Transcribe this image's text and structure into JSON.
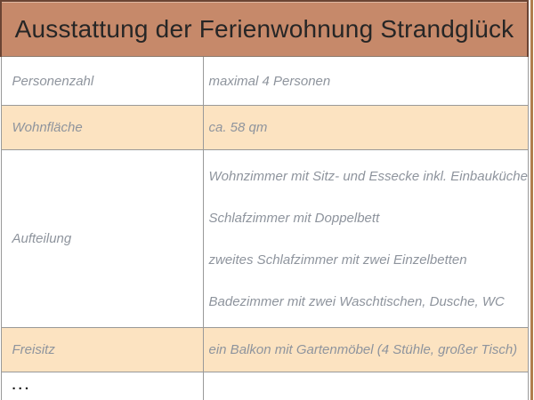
{
  "header": {
    "title": "Ausstattung der Ferienwohnung Strandglück"
  },
  "table": {
    "rows": [
      {
        "label": "Personenzahl",
        "value": "maximal 4 Personen",
        "highlighted": false
      },
      {
        "label": "Wohnfläche",
        "value": "ca. 58 qm",
        "highlighted": true
      },
      {
        "label": "Aufteilung",
        "values": [
          "Wohnzimmer mit Sitz- und Essecke inkl. Einbauküche",
          "Schlafzimmer mit Doppelbett",
          "zweites Schlafzimmer mit zwei Einzelbetten",
          "Badezimmer mit zwei Waschtischen, Dusche, WC"
        ],
        "highlighted": false
      },
      {
        "label": "Freisitz",
        "value": "ein Balkon mit Gartenmöbel (4 Stühle, großer Tisch)",
        "highlighted": true
      },
      {
        "label": "...",
        "value": "",
        "highlighted": false
      }
    ]
  },
  "colors": {
    "header_bg": "#c6896a",
    "header_border": "#6a4433",
    "header_text": "#262626",
    "highlight_row_bg": "#fce3c1",
    "highlight_row_border": "#b3906c",
    "grid_line": "#999999",
    "body_text": "#8e949d",
    "dots_text": "#151515",
    "page_edge_line": "#b07e4d"
  }
}
